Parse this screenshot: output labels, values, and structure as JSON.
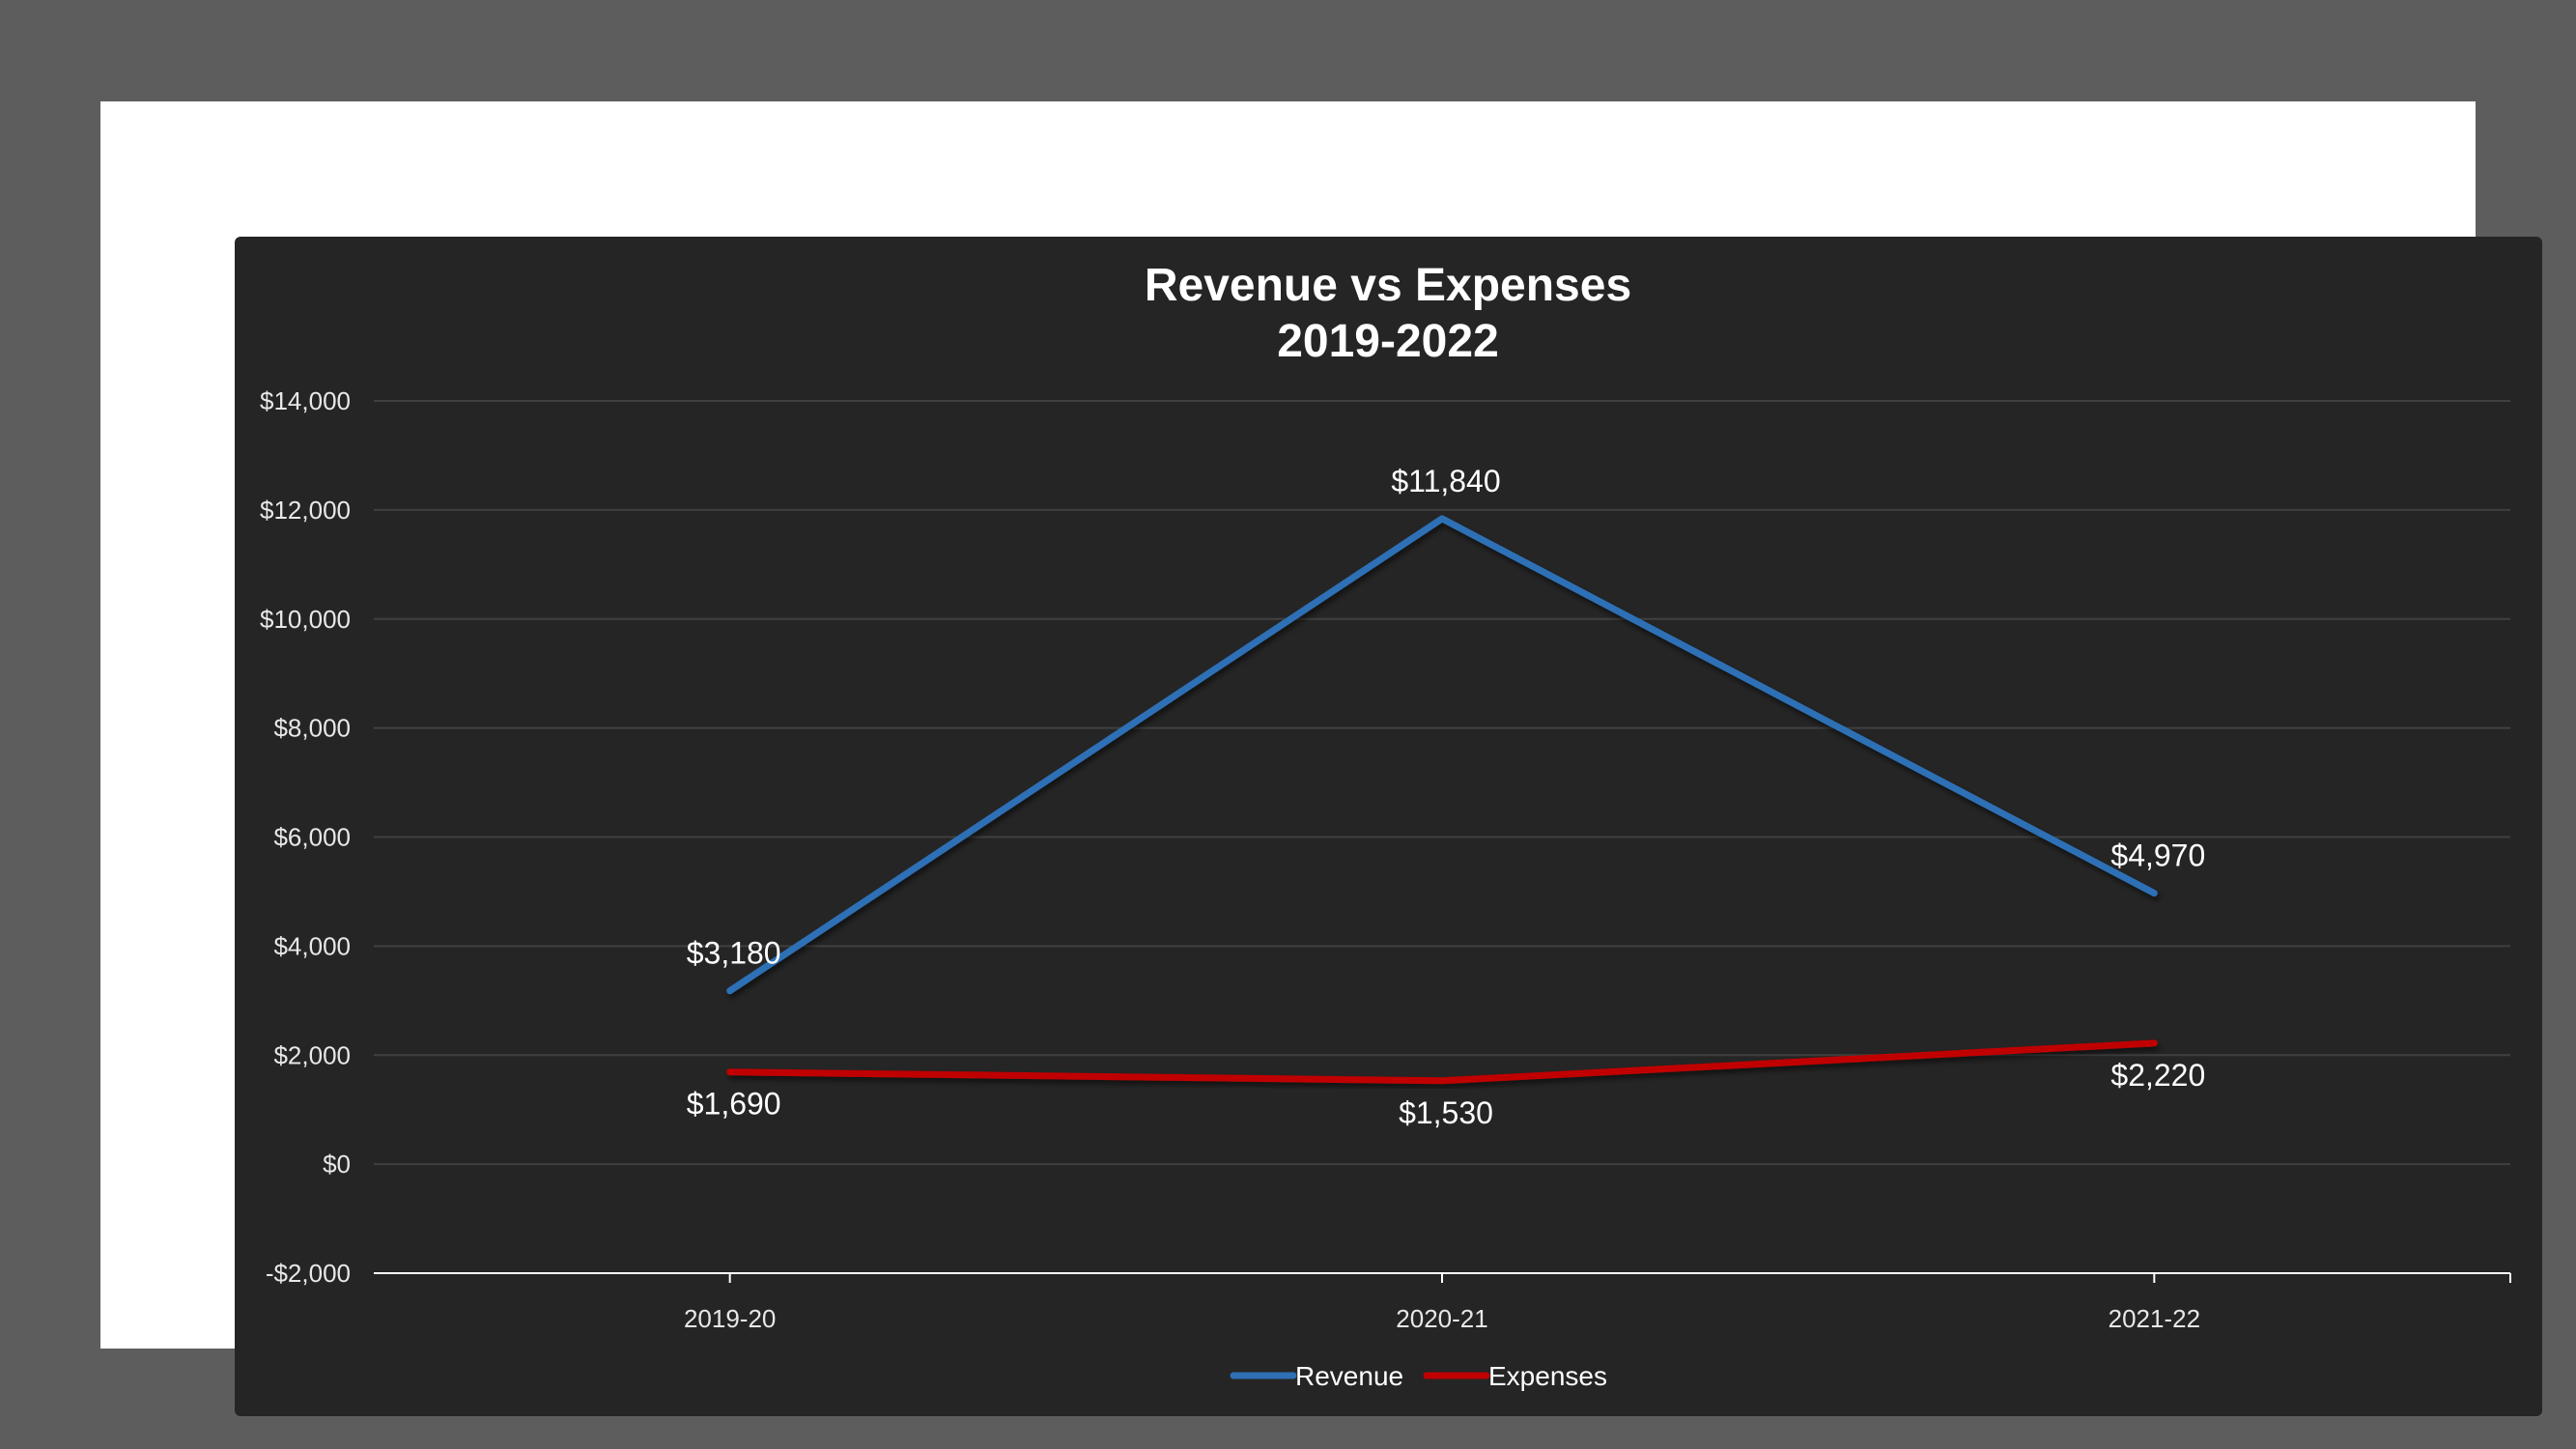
{
  "chart_data": {
    "type": "line",
    "title": "Revenue vs Expenses",
    "subtitle": "2019-2022",
    "categories": [
      "2019-20",
      "2020-21",
      "2021-22"
    ],
    "series": [
      {
        "name": "Revenue",
        "color": "#2e6fb5",
        "values": [
          3180,
          11840,
          4970
        ],
        "labels": [
          "$3,180",
          "$11,840",
          "$4,970"
        ],
        "label_position": "above"
      },
      {
        "name": "Expenses",
        "color": "#c00000",
        "values": [
          1690,
          1530,
          2220
        ],
        "labels": [
          "$1,690",
          "$1,530",
          "$2,220"
        ],
        "label_position": "below"
      }
    ],
    "ylim": [
      -2000,
      14000
    ],
    "yticks": [
      -2000,
      0,
      2000,
      4000,
      6000,
      8000,
      10000,
      12000,
      14000
    ],
    "ytick_labels": [
      "-$2,000",
      "$0",
      "$2,000",
      "$4,000",
      "$6,000",
      "$8,000",
      "$10,000",
      "$12,000",
      "$14,000"
    ],
    "xlabel": "",
    "ylabel": "",
    "grid": true,
    "legend": "bottom-center"
  },
  "colors": {
    "page_background": "#5d5d5d",
    "frame": "#ffffff",
    "chart_background": "#252525",
    "gridline": "#404040",
    "axis": "#ffffff"
  }
}
